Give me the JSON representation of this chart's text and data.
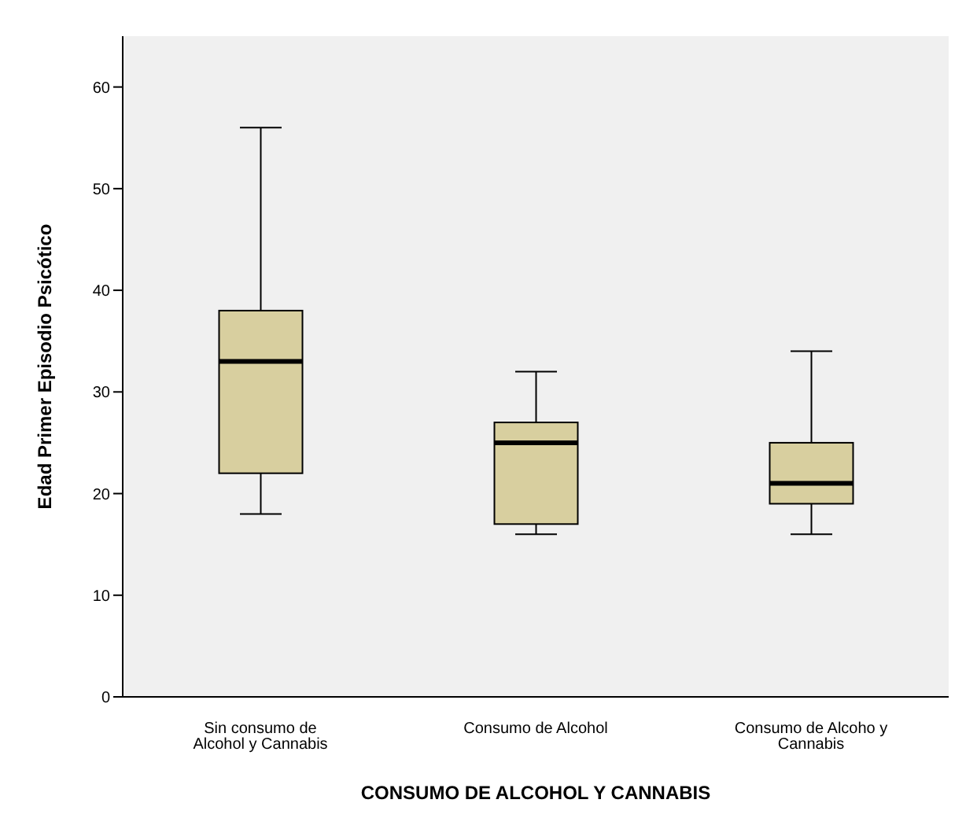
{
  "chart_data": {
    "type": "box",
    "xlabel": "CONSUMO DE ALCOHOL Y CANNABIS",
    "ylabel": "Edad Primer Episodio Psicótico",
    "categories": [
      "Sin consumo de Alcohol y Cannabis",
      "Consumo de Alcohol",
      "Consumo de Alcoho y Cannabis"
    ],
    "color": "#d8cf9f",
    "boxes": [
      {
        "low": 18,
        "q1": 22,
        "median": 33,
        "q3": 38,
        "high": 56
      },
      {
        "low": 16,
        "q1": 17,
        "median": 25,
        "q3": 27,
        "high": 32
      },
      {
        "low": 16,
        "q1": 19,
        "median": 21,
        "q3": 25,
        "high": 34
      }
    ],
    "ylim": [
      0,
      65
    ],
    "yticks": [
      0,
      10,
      20,
      30,
      40,
      50,
      60
    ]
  }
}
